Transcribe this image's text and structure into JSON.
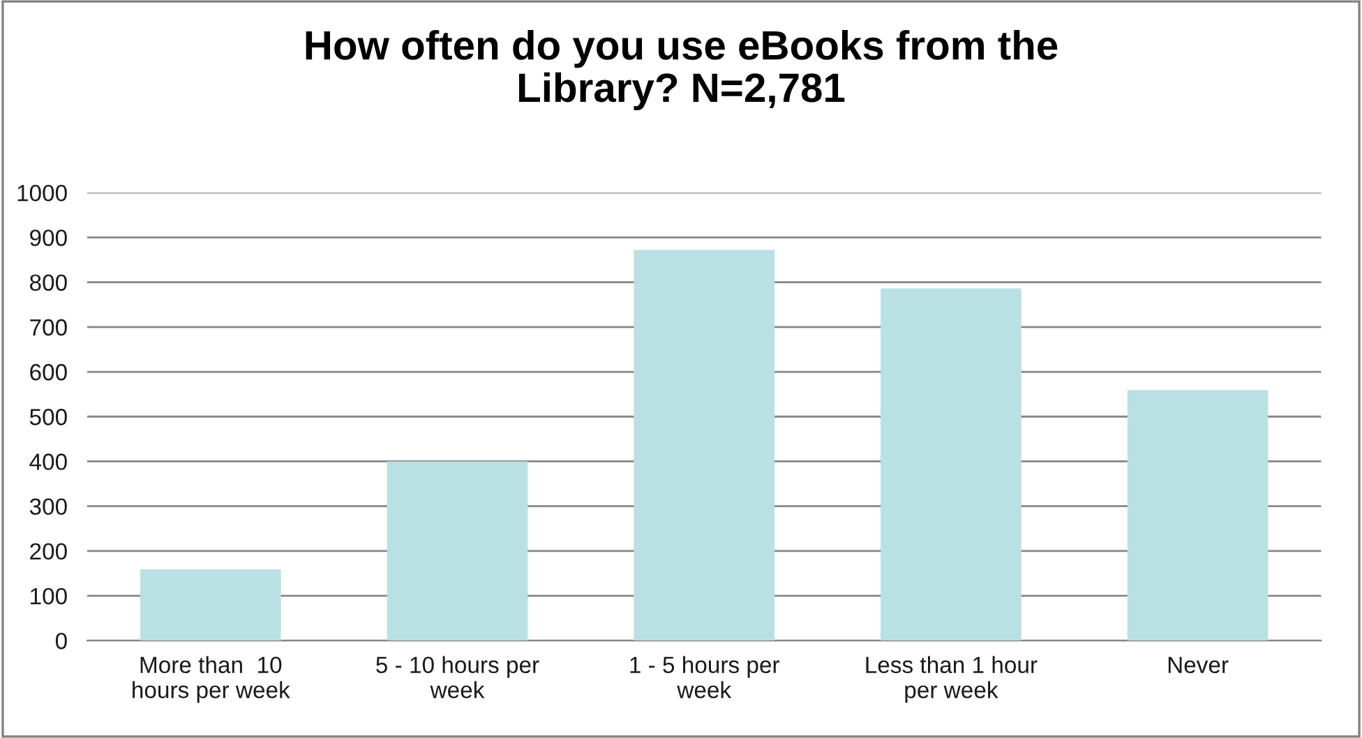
{
  "chart_data": {
    "type": "bar",
    "title": "How often do you use eBooks from the\nLibrary? N=2,781",
    "categories": [
      "More than  10\nhours per week",
      "5 - 10 hours per\nweek",
      "1 - 5 hours per\nweek",
      "Less than 1 hour\nper week",
      "Never"
    ],
    "values": [
      159,
      400,
      872,
      786,
      559
    ],
    "color": "#b9e0e3",
    "ylim": [
      0,
      1000
    ],
    "yticks": [
      0,
      100,
      200,
      300,
      400,
      500,
      600,
      700,
      800,
      900,
      1000
    ],
    "grid": "y"
  }
}
